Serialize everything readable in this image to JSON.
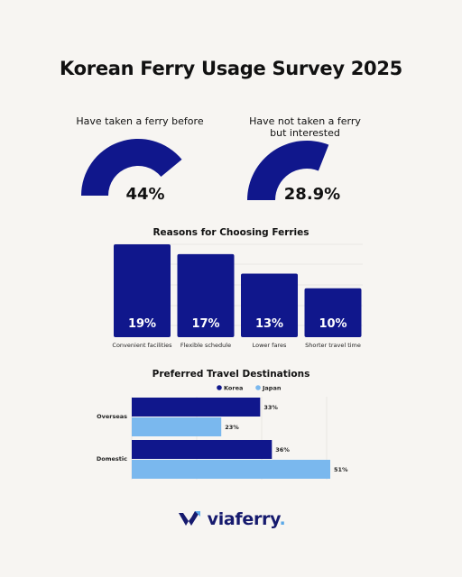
{
  "title": "Korean Ferry Usage Survey 2025",
  "colors": {
    "navy": "#10178c",
    "light_blue": "#7ab8ee",
    "background": "#f7f5f2"
  },
  "gauges": [
    {
      "label": "Have taken a ferry before",
      "value_label": "44%",
      "value": 44
    },
    {
      "label_line1": "Have not taken a ferry",
      "label_line2": "but interested",
      "value_label": "28.9%",
      "value": 28.9
    }
  ],
  "chart_data": [
    {
      "type": "bar",
      "title": "Reasons for Choosing Ferries",
      "categories": [
        "Convenient facilities",
        "Flexible schedule",
        "Lower fares",
        "Shorter travel time"
      ],
      "values": [
        19,
        17,
        13,
        10
      ],
      "value_labels": [
        "19%",
        "17%",
        "13%",
        "10%"
      ],
      "ylim": [
        0,
        19
      ]
    },
    {
      "type": "bar",
      "orientation": "horizontal",
      "title": "Preferred Travel Destinations",
      "categories": [
        "Overseas",
        "Domestic"
      ],
      "series": [
        {
          "name": "Korea",
          "values": [
            33,
            36
          ],
          "value_labels": [
            "33%",
            "36%"
          ]
        },
        {
          "name": "Japan",
          "values": [
            23,
            51
          ],
          "value_labels": [
            "23%",
            "51%"
          ]
        }
      ],
      "xlim": [
        0,
        51
      ],
      "legend": "top-center"
    }
  ],
  "logo": {
    "text_main": "viaferry",
    "text_dot": ".",
    "icon": "viaferry-arrow-logo-icon"
  }
}
